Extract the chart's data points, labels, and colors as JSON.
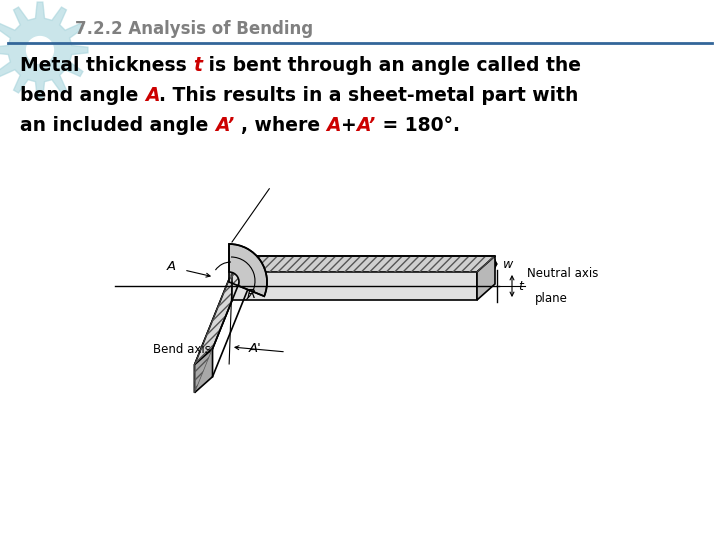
{
  "title": "7.2.2 Analysis of Bending",
  "title_color": "#808080",
  "title_fontsize": 12,
  "bg_color": "#ffffff",
  "gear_color": "#a8d4dc",
  "separator_color": "#336699",
  "text_line1_parts": [
    {
      "text": "Metal thickness ",
      "bold": true,
      "italic": false,
      "color": "#000000"
    },
    {
      "text": "t",
      "bold": true,
      "italic": true,
      "color": "#cc0000"
    },
    {
      "text": " is bent through an angle called the",
      "bold": true,
      "italic": false,
      "color": "#000000"
    }
  ],
  "text_line2_parts": [
    {
      "text": "bend angle ",
      "bold": true,
      "italic": false,
      "color": "#000000"
    },
    {
      "text": "A",
      "bold": true,
      "italic": true,
      "color": "#cc0000"
    },
    {
      "text": ". This results in a sheet-metal part with",
      "bold": true,
      "italic": false,
      "color": "#000000"
    }
  ],
  "text_line3_parts": [
    {
      "text": "an included angle ",
      "bold": true,
      "italic": false,
      "color": "#000000"
    },
    {
      "text": "A’ ",
      "bold": true,
      "italic": true,
      "color": "#cc0000"
    },
    {
      "text": ", where ",
      "bold": true,
      "italic": false,
      "color": "#000000"
    },
    {
      "text": "A",
      "bold": true,
      "italic": true,
      "color": "#cc0000"
    },
    {
      "text": "+",
      "bold": true,
      "italic": false,
      "color": "#000000"
    },
    {
      "text": "A’",
      "bold": true,
      "italic": true,
      "color": "#cc0000"
    },
    {
      "text": " = 180°.",
      "bold": true,
      "italic": false,
      "color": "#000000"
    }
  ]
}
